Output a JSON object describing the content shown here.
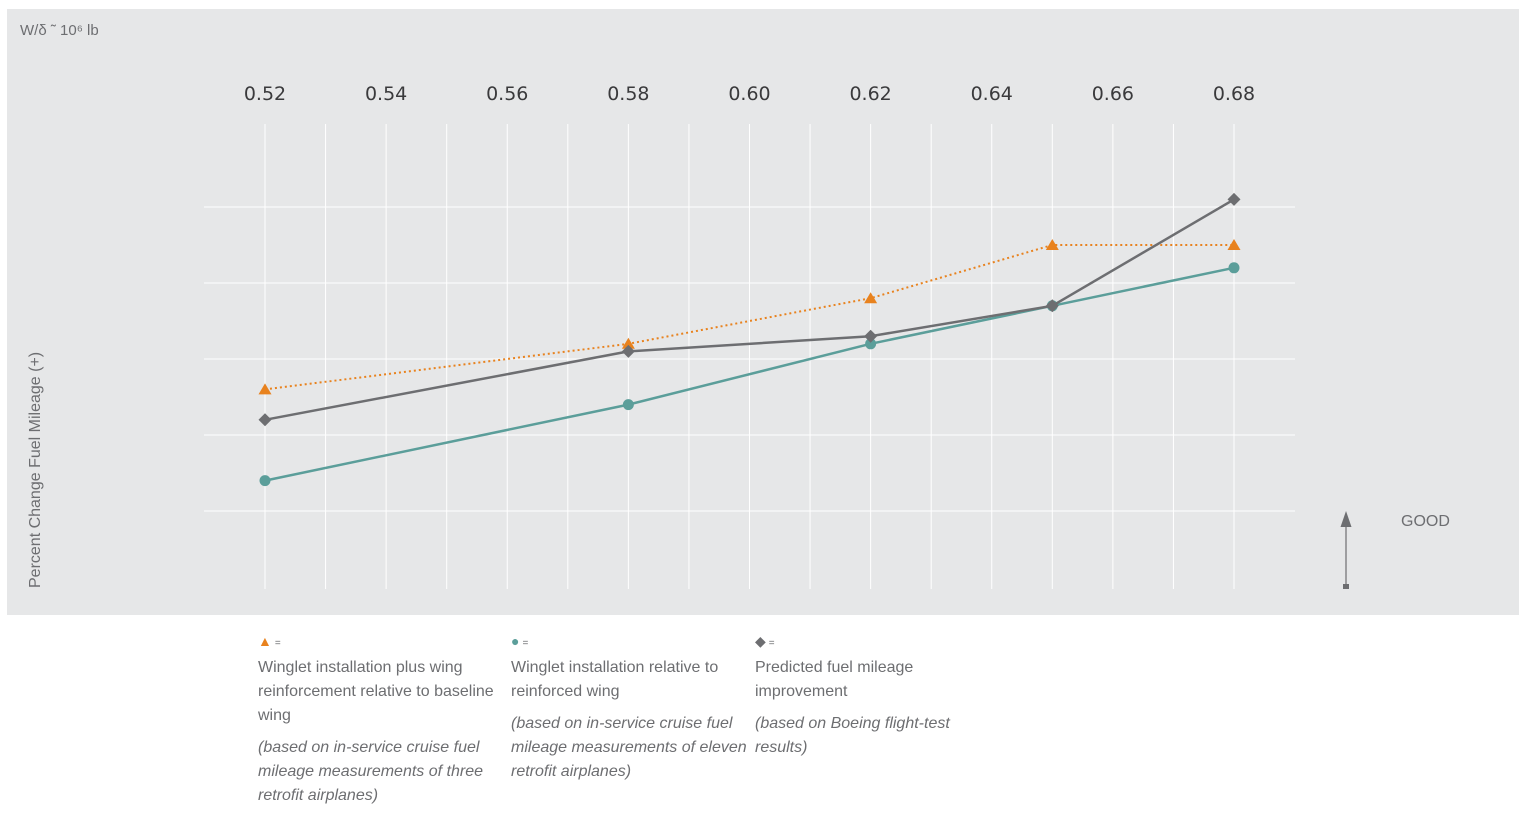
{
  "chart_data": {
    "type": "line",
    "title": "",
    "xlabel": "W/δ ˜ 10⁶ lb",
    "ylabel": "Percent Change Fuel Mileage (+)",
    "x_ticks": [
      "0.52",
      "0.54",
      "0.56",
      "0.58",
      "0.60",
      "0.62",
      "0.64",
      "0.66",
      "0.68"
    ],
    "xlim": [
      0.52,
      0.68
    ],
    "y_axis_unlabeled": true,
    "ylim": [
      0,
      5
    ],
    "grid": true,
    "indicator_label": "GOOD",
    "series": [
      {
        "marker": "triangle",
        "color": "#e8821e",
        "line_style": "dotted",
        "x": [
          0.52,
          0.58,
          0.62,
          0.65,
          0.68
        ],
        "y": [
          2.6,
          3.2,
          3.8,
          4.5,
          4.5
        ]
      },
      {
        "marker": "circle",
        "color": "#5b9e9a",
        "line_style": "solid",
        "x": [
          0.52,
          0.58,
          0.62,
          0.65,
          0.68
        ],
        "y": [
          1.4,
          2.4,
          3.2,
          3.7,
          4.2
        ]
      },
      {
        "marker": "diamond",
        "color": "#6d6e71",
        "line_style": "solid",
        "x": [
          0.52,
          0.58,
          0.62,
          0.65,
          0.68
        ],
        "y": [
          2.2,
          3.1,
          3.3,
          3.7,
          5.1
        ]
      }
    ]
  },
  "legend": [
    {
      "symbol": "▲",
      "eq": "=",
      "color": "#e8821e",
      "description": "Winglet installation plus wing reinforcement relative to baseline wing",
      "note": "(based on in-service cruise fuel mileage measurements of three retrofit airplanes)"
    },
    {
      "symbol": "●",
      "eq": "=",
      "color": "#5b9e9a",
      "description": "Winglet installation relative to reinforced wing",
      "note": "(based on in-service cruise fuel mileage measurements of eleven retrofit airplanes)"
    },
    {
      "symbol": "◆",
      "eq": "=",
      "color": "#6d6e71",
      "description": "Predicted fuel mileage improvement",
      "note": "(based on Boeing flight-test results)"
    }
  ]
}
